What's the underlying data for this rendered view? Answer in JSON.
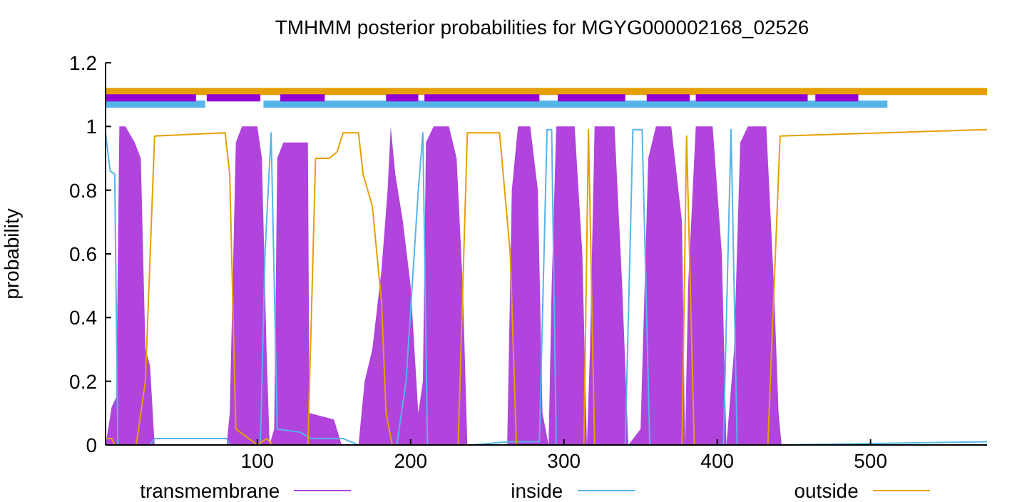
{
  "chart_data": {
    "type": "line",
    "title": "TMHMM posterior probabilities for MGYG000002168_02526",
    "ylabel": "probability",
    "xlim": [
      1,
      576
    ],
    "xticks": [
      100,
      200,
      300,
      400,
      500
    ],
    "ylim": [
      0,
      1.2
    ],
    "yticks": [
      0,
      0.2,
      0.4,
      0.6,
      0.8,
      1,
      1.2
    ],
    "grid": false,
    "legend": "bottom",
    "line_style": "solid",
    "marker": "none",
    "series": [
      {
        "name": "transmembrane",
        "type": "area",
        "color": "#b044dc",
        "x": [
          1,
          5,
          8,
          10,
          14,
          20,
          24,
          27,
          30,
          33,
          80,
          82,
          86,
          90,
          100,
          103,
          106,
          108,
          111,
          113,
          117,
          133,
          134,
          150,
          155,
          166,
          170,
          175,
          181,
          185,
          187,
          190,
          195,
          200,
          205,
          208,
          210,
          215,
          225,
          230,
          234,
          237,
          263,
          266,
          270,
          278,
          283,
          286,
          290,
          292,
          295,
          307,
          312,
          315,
          317,
          320,
          333,
          338,
          342,
          350,
          355,
          360,
          370,
          377,
          379,
          381,
          386,
          397,
          403,
          406,
          411,
          415,
          420,
          432,
          437,
          440,
          442,
          576
        ],
        "values": [
          0,
          0.12,
          0.15,
          1,
          1,
          0.95,
          0.9,
          0.3,
          0.25,
          0,
          0,
          0.1,
          0.95,
          1,
          1,
          0.9,
          0.3,
          0,
          0.05,
          0.9,
          0.95,
          0.95,
          0.1,
          0.08,
          0,
          0,
          0.2,
          0.3,
          0.55,
          0.8,
          1,
          0.85,
          0.7,
          0.5,
          0.1,
          0.2,
          0.95,
          1,
          1,
          0.9,
          0.5,
          0,
          0,
          0.8,
          1,
          1,
          0.8,
          0.1,
          0,
          0.5,
          1,
          1,
          0.6,
          0,
          0.3,
          1,
          1,
          0.5,
          0,
          0.05,
          0.9,
          1,
          1,
          0.7,
          0,
          0.5,
          1,
          1,
          0.6,
          0,
          0.3,
          0.95,
          1,
          1,
          0.5,
          0.1,
          0,
          0
        ]
      },
      {
        "name": "inside",
        "color": "#56b4e9",
        "x": [
          1,
          4,
          7,
          9,
          30,
          33,
          80,
          82,
          102,
          105,
          109,
          113,
          128,
          135,
          156,
          166,
          191,
          197,
          205,
          208,
          211,
          240,
          264,
          284,
          289,
          292,
          295,
          340,
          345,
          351,
          356,
          404,
          409,
          413,
          440,
          576
        ],
        "values": [
          0.98,
          0.86,
          0.85,
          0,
          0,
          0.02,
          0.02,
          0,
          0,
          0.6,
          0.98,
          0.05,
          0.04,
          0.02,
          0.02,
          0,
          0,
          0.2,
          0.8,
          0.98,
          0,
          0,
          0.01,
          0.01,
          0.99,
          0.99,
          0,
          0,
          0.99,
          0.99,
          0,
          0,
          0.99,
          0,
          0,
          0.01
        ]
      },
      {
        "name": "outside",
        "color": "#e69f00",
        "x": [
          1,
          5,
          7,
          21,
          24,
          27,
          33,
          79,
          82,
          86,
          100,
          106,
          110,
          133,
          138,
          147,
          152,
          156,
          166,
          169,
          175,
          178,
          181,
          184,
          188,
          231,
          237,
          258,
          265,
          269,
          313,
          316,
          320,
          377,
          380,
          385,
          433,
          441,
          576
        ],
        "values": [
          0.02,
          0.02,
          0,
          0,
          0.1,
          0.2,
          0.97,
          0.98,
          0.85,
          0.05,
          0,
          0.02,
          0,
          0,
          0.9,
          0.9,
          0.92,
          0.98,
          0.98,
          0.85,
          0.75,
          0.6,
          0.45,
          0.1,
          0,
          0,
          0.98,
          0.98,
          0.6,
          0,
          0,
          0.99,
          0,
          0,
          0.97,
          0,
          0,
          0.97,
          0.99
        ]
      },
      {
        "color": "#e69f00",
        "x": [
          1,
          576
        ],
        "values": [
          1.11,
          1.11
        ]
      },
      {
        "color": "#56b4e9",
        "x": [
          1,
          66,
          85,
          104,
          511
        ],
        "values": [
          1.07,
          1.07,
          null,
          1.07,
          1.07
        ]
      },
      {
        "color": "#9400d3",
        "x": [
          1,
          60,
          63,
          67,
          102,
          108,
          115,
          144,
          164,
          184,
          205,
          207,
          209,
          284,
          290,
          296,
          340,
          347,
          354,
          382,
          384,
          386,
          459,
          461,
          464,
          492
        ],
        "values": [
          1.09,
          1.09,
          null,
          1.09,
          1.09,
          null,
          1.09,
          1.09,
          null,
          1.09,
          1.09,
          null,
          1.09,
          1.09,
          null,
          1.09,
          1.09,
          null,
          1.09,
          1.09,
          null,
          1.09,
          1.09,
          null,
          1.09,
          1.09
        ]
      }
    ]
  }
}
